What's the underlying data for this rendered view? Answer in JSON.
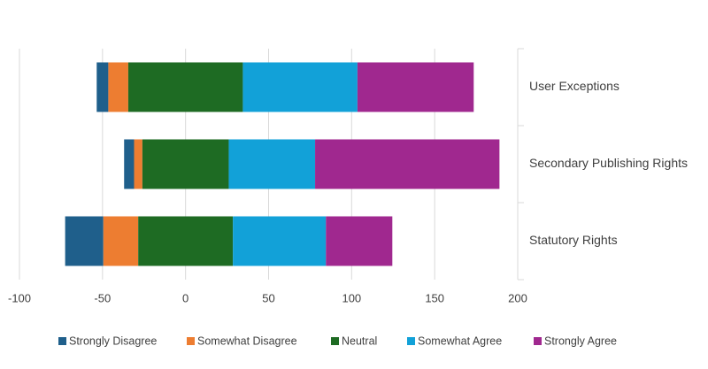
{
  "chart_data": {
    "type": "diverging_bar",
    "categories": [
      "User Exceptions",
      "Secondary Publishing Rights",
      "Statutory Rights"
    ],
    "series": [
      {
        "name": "Strongly Disagree",
        "color": "#1f5f8b",
        "values": [
          7,
          6,
          23
        ]
      },
      {
        "name": "Somewhat Disagree",
        "color": "#ed7d31",
        "values": [
          12,
          5,
          21
        ]
      },
      {
        "name": "Neutral",
        "color": "#1e6b23",
        "values": [
          69,
          52,
          57
        ]
      },
      {
        "name": "Somewhat Agree",
        "color": "#12a1d8",
        "values": [
          69,
          52,
          56
        ]
      },
      {
        "name": "Strongly Agree",
        "color": "#a0288f",
        "values": [
          70,
          111,
          40
        ]
      }
    ],
    "xlim": [
      -100,
      200
    ],
    "xticks": [
      -100,
      -50,
      0,
      50,
      100,
      150,
      200
    ],
    "grid": true,
    "legend": "bottom"
  }
}
